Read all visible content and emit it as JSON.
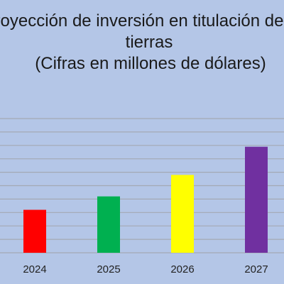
{
  "chart_data": {
    "type": "bar",
    "title_lines": [
      "Proyección de inversión en titulación de",
      "tierras",
      "(Cifras en millones de dólares)"
    ],
    "categories": [
      "2024",
      "2025",
      "2026",
      "2027"
    ],
    "values": [
      16,
      21,
      29,
      39.5
    ],
    "ylim": [
      0,
      40
    ],
    "grid": true,
    "gridline_values": [
      0,
      5,
      10,
      15,
      20,
      25,
      30,
      35,
      40,
      45,
      50
    ],
    "bar_colors": [
      "#ff0000",
      "#00b050",
      "#ffff00",
      "#7030a0"
    ],
    "xlabel": "",
    "ylabel": ""
  }
}
